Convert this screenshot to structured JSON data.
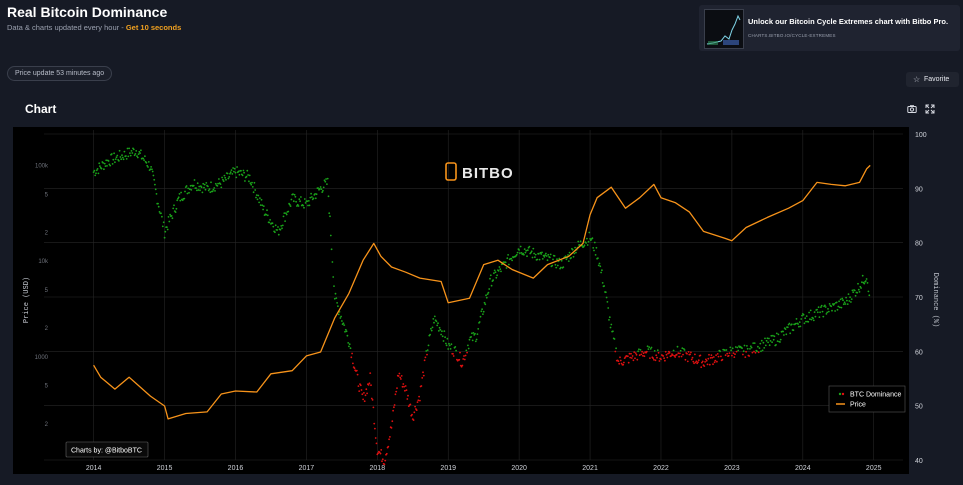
{
  "header": {
    "title": "Real Bitcoin Dominance",
    "subtitle": "Data & charts updated every hour - ",
    "subtitle_cta": "Get 10 seconds"
  },
  "price_update": "Price update 53 minutes ago",
  "promo": {
    "title": "Unlock our Bitcoin Cycle Extremes chart with Bitbo Pro.",
    "url": "CHARTS.BITBO.IO/CYCLE-EXTREMES"
  },
  "favorite_label": "Favorite",
  "chart_section": {
    "heading": "Chart",
    "camera_icon": "camera-icon",
    "expand_icon": "expand-icon"
  },
  "watermark": "BITBO",
  "credit": "Charts by: @BitboBTC",
  "colors": {
    "background": "#161a25",
    "plot_bg": "#000000",
    "price": "#f7931a",
    "dominance_green": "#1aa31a",
    "dominance_red": "#e01010",
    "grid": "#262626",
    "accent": "#f0a020"
  },
  "chart_data": {
    "type": "line",
    "title": "",
    "xlabel": "",
    "ylabel_left": "Price (USD)",
    "ylabel_right": "Dominance (%)",
    "x_ticks": [
      "2014",
      "2015",
      "2016",
      "2017",
      "2018",
      "2019",
      "2020",
      "2021",
      "2022",
      "2023",
      "2024",
      "2025"
    ],
    "y_left_scale": "log",
    "y_left_ticks": [
      "100k",
      "5",
      "2",
      "10k",
      "5",
      "2",
      "1000",
      "5",
      "2"
    ],
    "y_left_tick_values": [
      100000,
      50000,
      20000,
      10000,
      5000,
      2000,
      1000,
      500,
      200
    ],
    "y_right_ticks": [
      "100",
      "90",
      "80",
      "70",
      "60",
      "50",
      "40"
    ],
    "y_right_range": [
      40,
      100
    ],
    "legend_position": "bottom-right",
    "grid": true,
    "series": [
      {
        "name": "BTC Dominance",
        "axis": "right",
        "style": "scatter",
        "note_colors": "green above 60, red below 60",
        "x": [
          2014.0,
          2014.2,
          2014.4,
          2014.6,
          2014.8,
          2014.95,
          2015.0,
          2015.2,
          2015.4,
          2015.6,
          2015.8,
          2016.0,
          2016.2,
          2016.4,
          2016.6,
          2016.8,
          2017.0,
          2017.2,
          2017.3,
          2017.4,
          2017.5,
          2017.6,
          2017.7,
          2017.8,
          2017.9,
          2018.0,
          2018.1,
          2018.2,
          2018.3,
          2018.4,
          2018.5,
          2018.6,
          2018.7,
          2018.8,
          2018.9,
          2019.0,
          2019.1,
          2019.2,
          2019.3,
          2019.4,
          2019.6,
          2019.8,
          2020.0,
          2020.2,
          2020.4,
          2020.6,
          2020.8,
          2021.0,
          2021.1,
          2021.2,
          2021.3,
          2021.4,
          2021.6,
          2021.8,
          2022.0,
          2022.2,
          2022.4,
          2022.6,
          2022.8,
          2023.0,
          2023.2,
          2023.4,
          2023.6,
          2023.8,
          2024.0,
          2024.2,
          2024.4,
          2024.6,
          2024.8,
          2024.9,
          2024.95
        ],
        "y": [
          93,
          95,
          96,
          97,
          94,
          85,
          82,
          88,
          91,
          90,
          91,
          93,
          92,
          86,
          82,
          88,
          87,
          90,
          91,
          70,
          66,
          62,
          56,
          51,
          55,
          42,
          40,
          46,
          56,
          53,
          48,
          52,
          60,
          66,
          64,
          61,
          60,
          58,
          62,
          63,
          73,
          76,
          79,
          78,
          77,
          76,
          79,
          81,
          78,
          72,
          64,
          58,
          59,
          60,
          59,
          60,
          59,
          58,
          59,
          60,
          60,
          61,
          62,
          64,
          66,
          67,
          68,
          69,
          72,
          74,
          70
        ]
      },
      {
        "name": "Price",
        "axis": "left",
        "style": "line",
        "x": [
          2014.0,
          2014.1,
          2014.3,
          2014.5,
          2014.8,
          2015.0,
          2015.05,
          2015.3,
          2015.6,
          2015.8,
          2016.0,
          2016.3,
          2016.5,
          2016.8,
          2017.0,
          2017.2,
          2017.4,
          2017.6,
          2017.8,
          2017.95,
          2018.05,
          2018.2,
          2018.4,
          2018.6,
          2018.9,
          2019.0,
          2019.3,
          2019.5,
          2019.7,
          2019.9,
          2020.2,
          2020.4,
          2020.7,
          2020.9,
          2021.0,
          2021.1,
          2021.3,
          2021.5,
          2021.7,
          2021.9,
          2022.0,
          2022.2,
          2022.4,
          2022.6,
          2022.9,
          2023.0,
          2023.2,
          2023.5,
          2023.8,
          2024.0,
          2024.2,
          2024.4,
          2024.6,
          2024.8,
          2024.9,
          2024.95
        ],
        "y": [
          800,
          600,
          450,
          600,
          380,
          300,
          220,
          250,
          260,
          400,
          430,
          420,
          650,
          700,
          1000,
          1100,
          2500,
          4500,
          10000,
          15000,
          11000,
          8500,
          7500,
          6500,
          6000,
          3600,
          4000,
          9000,
          10000,
          8000,
          6500,
          9000,
          11000,
          15000,
          30000,
          45000,
          58000,
          35000,
          45000,
          62000,
          45000,
          40000,
          32000,
          20000,
          17000,
          16000,
          22000,
          28000,
          35000,
          42000,
          65000,
          62000,
          60000,
          65000,
          90000,
          98000
        ]
      }
    ]
  }
}
